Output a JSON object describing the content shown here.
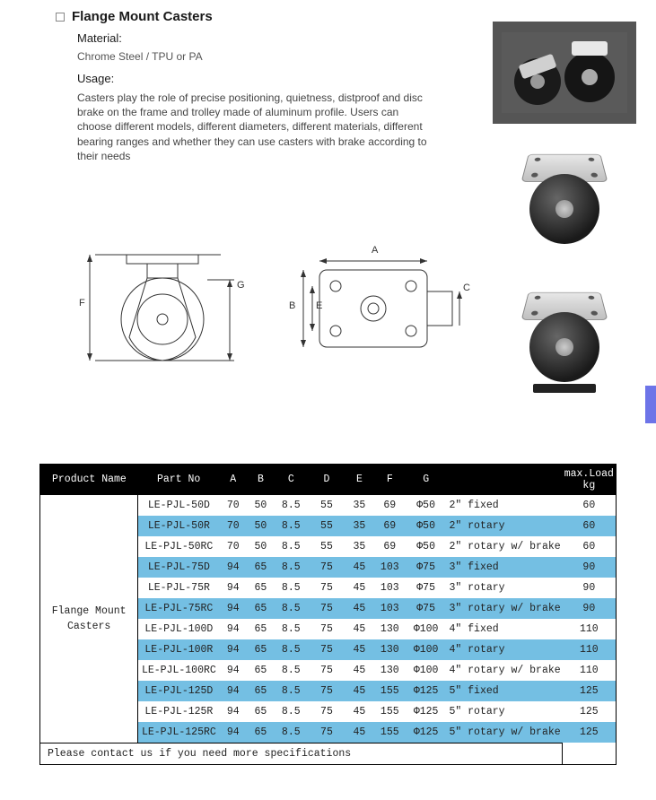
{
  "title": "Flange Mount Casters",
  "material_label": "Material:",
  "material_value": "Chrome Steel / TPU or PA",
  "usage_label": "Usage:",
  "usage_text": "Casters play the role of precise positioning, quietness, distproof and disc brake on the frame and trolley made of aluminum profile. Users can choose different models, different diameters, different materials, different bearing ranges and whether they can use casters with brake according to their needs",
  "dim_labels": {
    "F": "F",
    "G": "G",
    "A": "A",
    "B": "B",
    "C": "C",
    "E": "E"
  },
  "table": {
    "headers": [
      "Product Name",
      "Part No",
      "A",
      "B",
      "C",
      "D",
      "E",
      "F",
      "G",
      "",
      "max.Load kg"
    ],
    "product_name": "Flange Mount\nCasters",
    "rows": [
      {
        "pn": "LE-PJL-50D",
        "A": "70",
        "B": "50",
        "C": "8.5",
        "D": "55",
        "E": "35",
        "F": "69",
        "G": "Φ50",
        "type": "2″ fixed",
        "load": "60",
        "alt": false
      },
      {
        "pn": "LE-PJL-50R",
        "A": "70",
        "B": "50",
        "C": "8.5",
        "D": "55",
        "E": "35",
        "F": "69",
        "G": "Φ50",
        "type": "2″ rotary",
        "load": "60",
        "alt": true
      },
      {
        "pn": "LE-PJL-50RC",
        "A": "70",
        "B": "50",
        "C": "8.5",
        "D": "55",
        "E": "35",
        "F": "69",
        "G": "Φ50",
        "type": "2″ rotary w/ brake",
        "load": "60",
        "alt": false
      },
      {
        "pn": "LE-PJL-75D",
        "A": "94",
        "B": "65",
        "C": "8.5",
        "D": "75",
        "E": "45",
        "F": "103",
        "G": "Φ75",
        "type": "3″ fixed",
        "load": "90",
        "alt": true
      },
      {
        "pn": "LE-PJL-75R",
        "A": "94",
        "B": "65",
        "C": "8.5",
        "D": "75",
        "E": "45",
        "F": "103",
        "G": "Φ75",
        "type": "3″ rotary",
        "load": "90",
        "alt": false
      },
      {
        "pn": "LE-PJL-75RC",
        "A": "94",
        "B": "65",
        "C": "8.5",
        "D": "75",
        "E": "45",
        "F": "103",
        "G": "Φ75",
        "type": "3″ rotary w/ brake",
        "load": "90",
        "alt": true
      },
      {
        "pn": "LE-PJL-100D",
        "A": "94",
        "B": "65",
        "C": "8.5",
        "D": "75",
        "E": "45",
        "F": "130",
        "G": "Φ100",
        "type": "4″ fixed",
        "load": "110",
        "alt": false
      },
      {
        "pn": "LE-PJL-100R",
        "A": "94",
        "B": "65",
        "C": "8.5",
        "D": "75",
        "E": "45",
        "F": "130",
        "G": "Φ100",
        "type": "4″ rotary",
        "load": "110",
        "alt": true
      },
      {
        "pn": "LE-PJL-100RC",
        "A": "94",
        "B": "65",
        "C": "8.5",
        "D": "75",
        "E": "45",
        "F": "130",
        "G": "Φ100",
        "type": "4″ rotary w/ brake",
        "load": "110",
        "alt": false
      },
      {
        "pn": "LE-PJL-125D",
        "A": "94",
        "B": "65",
        "C": "8.5",
        "D": "75",
        "E": "45",
        "F": "155",
        "G": "Φ125",
        "type": "5″ fixed",
        "load": "125",
        "alt": true
      },
      {
        "pn": "LE-PJL-125R",
        "A": "94",
        "B": "65",
        "C": "8.5",
        "D": "75",
        "E": "45",
        "F": "155",
        "G": "Φ125",
        "type": "5″ rotary",
        "load": "125",
        "alt": false
      },
      {
        "pn": "LE-PJL-125RC",
        "A": "94",
        "B": "65",
        "C": "8.5",
        "D": "75",
        "E": "45",
        "F": "155",
        "G": "Φ125",
        "type": "5″ rotary w/ brake",
        "load": "125",
        "alt": true
      }
    ],
    "footer": "Please contact us if you need more specifications"
  },
  "colors": {
    "header_bg": "#000000",
    "header_fg": "#ffffff",
    "alt_row_bg": "#74bfe3",
    "side_tab": "#6d74e8"
  }
}
